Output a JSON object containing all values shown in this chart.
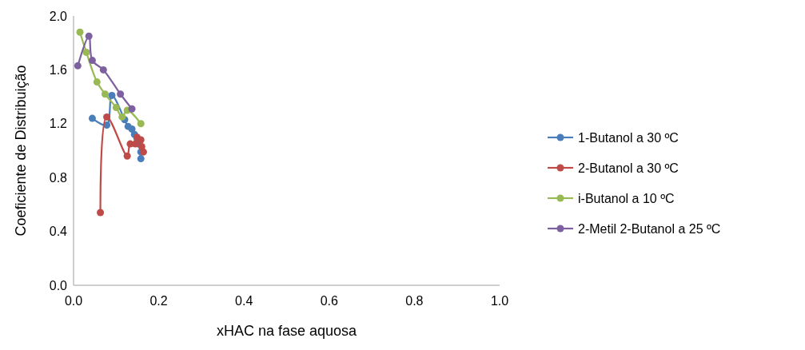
{
  "chart_data": {
    "type": "line",
    "xlabel": "xHAC na fase aquosa",
    "ylabel": "Coeficiente de Distribuição",
    "xlim": [
      0,
      1
    ],
    "xticks": [
      {
        "value": 0,
        "label": "0.0"
      },
      0.2,
      0.4,
      0.6,
      0.8,
      {
        "value": 1,
        "label": "1.0"
      }
    ],
    "ylim": [
      0,
      2
    ],
    "yticks": [
      {
        "value": 0,
        "label": "0.0"
      },
      0.4,
      0.8,
      1.2,
      1.6,
      {
        "value": 2,
        "label": "2.0"
      }
    ],
    "grid": false,
    "legend": "right",
    "marker": "circle",
    "line_style": "solid",
    "series": [
      {
        "name": "1-Butanol a 30 ºC",
        "color": "#4a7ebb",
        "x": [
          0.044,
          0.078,
          0.09,
          0.12,
          0.128,
          0.137,
          0.143,
          0.149,
          0.152,
          0.158,
          0.158
        ],
        "values": [
          1.24,
          1.19,
          1.41,
          1.23,
          1.18,
          1.16,
          1.12,
          1.09,
          1.05,
          0.99,
          0.94
        ]
      },
      {
        "name": "2-Butanol a 30 ºC",
        "color": "#be4b48",
        "x": [
          0.063,
          0.078,
          0.126,
          0.133,
          0.145,
          0.149,
          0.158,
          0.16,
          0.164
        ],
        "values": [
          0.54,
          1.25,
          0.96,
          1.05,
          1.05,
          1.1,
          1.08,
          1.03,
          0.99
        ]
      },
      {
        "name": "i-Butanol a 10 ºC",
        "color": "#98b954",
        "x": [
          0.015,
          0.03,
          0.055,
          0.074,
          0.1,
          0.114,
          0.126,
          0.158
        ],
        "values": [
          1.88,
          1.73,
          1.51,
          1.42,
          1.32,
          1.25,
          1.3,
          1.2
        ]
      },
      {
        "name": "2-Metil 2-Butanol a 25 ºC",
        "color": "#7d60a0",
        "x": [
          0.01,
          0.036,
          0.044,
          0.07,
          0.11,
          0.137
        ],
        "values": [
          1.63,
          1.85,
          1.67,
          1.6,
          1.42,
          1.31
        ]
      }
    ]
  }
}
